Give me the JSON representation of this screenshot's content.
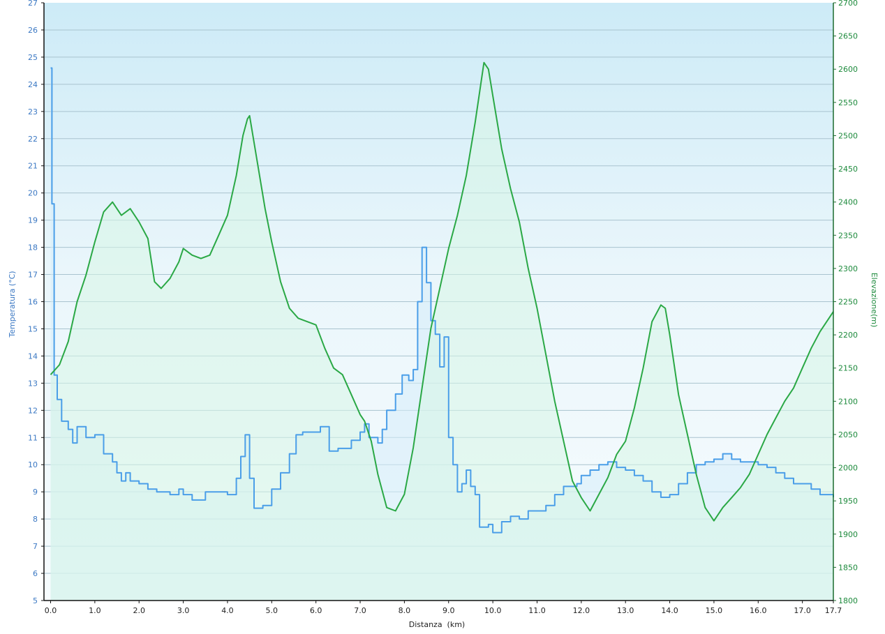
{
  "chart_data": {
    "type": "line",
    "xlabel": "Distanza  (km)",
    "ylabel_left": "Temperatura (°C)",
    "ylabel_right": "Elevazione(m)",
    "xlim": [
      -0.15,
      17.7
    ],
    "ylim_left": [
      5,
      27
    ],
    "ylim_right": [
      1800,
      2700
    ],
    "x_ticks": [
      "0.0",
      "1.0",
      "2.0",
      "3.0",
      "4.0",
      "5.0",
      "6.0",
      "7.0",
      "8.0",
      "9.0",
      "10.0",
      "11.0",
      "12.0",
      "13.0",
      "14.0",
      "15.0",
      "16.0",
      "17.0",
      "17.7"
    ],
    "x_tick_values": [
      0,
      1,
      2,
      3,
      4,
      5,
      6,
      7,
      8,
      9,
      10,
      11,
      12,
      13,
      14,
      15,
      16,
      17,
      17.7
    ],
    "y_left_ticks": [
      "5",
      "6",
      "7",
      "8",
      "9",
      "10",
      "11",
      "12",
      "13",
      "14",
      "15",
      "16",
      "17",
      "18",
      "19",
      "20",
      "21",
      "22",
      "23",
      "24",
      "25",
      "26",
      "27"
    ],
    "y_right_ticks": [
      "1800",
      "1850",
      "1900",
      "1950",
      "2000",
      "2050",
      "2100",
      "2150",
      "2200",
      "2250",
      "2300",
      "2350",
      "2400",
      "2450",
      "2500",
      "2550",
      "2600",
      "2650",
      "2700"
    ],
    "grid": true,
    "series": [
      {
        "name": "Temperatura (°C)",
        "axis": "left",
        "color": "#4a9ee8",
        "fill": "#d6ecfa",
        "step": true,
        "points": [
          [
            0,
            24.6
          ],
          [
            0.03,
            19.6
          ],
          [
            0.08,
            13.3
          ],
          [
            0.15,
            12.4
          ],
          [
            0.25,
            11.6
          ],
          [
            0.4,
            11.3
          ],
          [
            0.5,
            10.8
          ],
          [
            0.6,
            11.4
          ],
          [
            0.8,
            11.0
          ],
          [
            1.0,
            11.1
          ],
          [
            1.2,
            10.4
          ],
          [
            1.4,
            10.1
          ],
          [
            1.5,
            9.7
          ],
          [
            1.6,
            9.4
          ],
          [
            1.7,
            9.7
          ],
          [
            1.8,
            9.4
          ],
          [
            2.0,
            9.3
          ],
          [
            2.2,
            9.1
          ],
          [
            2.4,
            9.0
          ],
          [
            2.7,
            8.9
          ],
          [
            2.9,
            9.1
          ],
          [
            3.0,
            8.9
          ],
          [
            3.2,
            8.7
          ],
          [
            3.5,
            9.0
          ],
          [
            3.8,
            9.0
          ],
          [
            4.0,
            8.9
          ],
          [
            4.2,
            9.5
          ],
          [
            4.3,
            10.3
          ],
          [
            4.4,
            11.1
          ],
          [
            4.5,
            9.5
          ],
          [
            4.6,
            8.4
          ],
          [
            4.8,
            8.5
          ],
          [
            5.0,
            9.1
          ],
          [
            5.2,
            9.7
          ],
          [
            5.4,
            10.4
          ],
          [
            5.55,
            11.1
          ],
          [
            5.7,
            11.2
          ],
          [
            5.9,
            11.2
          ],
          [
            6.1,
            11.4
          ],
          [
            6.3,
            10.5
          ],
          [
            6.5,
            10.6
          ],
          [
            6.8,
            10.9
          ],
          [
            7.0,
            11.2
          ],
          [
            7.1,
            11.5
          ],
          [
            7.2,
            11.0
          ],
          [
            7.4,
            10.8
          ],
          [
            7.5,
            11.3
          ],
          [
            7.6,
            12.0
          ],
          [
            7.8,
            12.6
          ],
          [
            7.95,
            13.3
          ],
          [
            8.1,
            13.1
          ],
          [
            8.2,
            13.5
          ],
          [
            8.3,
            16.0
          ],
          [
            8.4,
            18.0
          ],
          [
            8.5,
            16.7
          ],
          [
            8.6,
            15.3
          ],
          [
            8.7,
            14.8
          ],
          [
            8.8,
            13.6
          ],
          [
            8.9,
            14.7
          ],
          [
            9.0,
            11.0
          ],
          [
            9.1,
            10.0
          ],
          [
            9.2,
            9.0
          ],
          [
            9.3,
            9.3
          ],
          [
            9.4,
            9.8
          ],
          [
            9.5,
            9.2
          ],
          [
            9.6,
            8.9
          ],
          [
            9.7,
            7.7
          ],
          [
            9.9,
            7.8
          ],
          [
            10.0,
            7.5
          ],
          [
            10.2,
            7.9
          ],
          [
            10.4,
            8.1
          ],
          [
            10.6,
            8.0
          ],
          [
            10.8,
            8.3
          ],
          [
            11.0,
            8.3
          ],
          [
            11.2,
            8.5
          ],
          [
            11.4,
            8.9
          ],
          [
            11.6,
            9.2
          ],
          [
            11.9,
            9.3
          ],
          [
            12.0,
            9.6
          ],
          [
            12.2,
            9.8
          ],
          [
            12.4,
            10.0
          ],
          [
            12.6,
            10.1
          ],
          [
            12.8,
            9.9
          ],
          [
            13.0,
            9.8
          ],
          [
            13.2,
            9.6
          ],
          [
            13.4,
            9.4
          ],
          [
            13.6,
            9.0
          ],
          [
            13.8,
            8.8
          ],
          [
            14.0,
            8.9
          ],
          [
            14.2,
            9.3
          ],
          [
            14.4,
            9.7
          ],
          [
            14.6,
            10.0
          ],
          [
            14.8,
            10.1
          ],
          [
            15.0,
            10.2
          ],
          [
            15.2,
            10.4
          ],
          [
            15.4,
            10.2
          ],
          [
            15.6,
            10.1
          ],
          [
            15.8,
            10.1
          ],
          [
            16.0,
            10.0
          ],
          [
            16.2,
            9.9
          ],
          [
            16.4,
            9.7
          ],
          [
            16.6,
            9.5
          ],
          [
            16.8,
            9.3
          ],
          [
            17.0,
            9.3
          ],
          [
            17.2,
            9.1
          ],
          [
            17.4,
            8.9
          ],
          [
            17.7,
            8.8
          ]
        ]
      },
      {
        "name": "Elevazione(m)",
        "axis": "right",
        "color": "#2aa845",
        "fill": "#d7f5e6",
        "step": false,
        "points": [
          [
            0,
            2140
          ],
          [
            0.2,
            2155
          ],
          [
            0.4,
            2190
          ],
          [
            0.6,
            2250
          ],
          [
            0.8,
            2290
          ],
          [
            1.0,
            2340
          ],
          [
            1.2,
            2385
          ],
          [
            1.4,
            2400
          ],
          [
            1.6,
            2380
          ],
          [
            1.8,
            2390
          ],
          [
            2.0,
            2370
          ],
          [
            2.2,
            2345
          ],
          [
            2.35,
            2280
          ],
          [
            2.5,
            2270
          ],
          [
            2.7,
            2285
          ],
          [
            2.9,
            2310
          ],
          [
            3.0,
            2330
          ],
          [
            3.2,
            2320
          ],
          [
            3.4,
            2315
          ],
          [
            3.6,
            2320
          ],
          [
            3.8,
            2350
          ],
          [
            4.0,
            2380
          ],
          [
            4.2,
            2440
          ],
          [
            4.35,
            2500
          ],
          [
            4.45,
            2525
          ],
          [
            4.5,
            2530
          ],
          [
            4.65,
            2470
          ],
          [
            4.85,
            2390
          ],
          [
            5.0,
            2340
          ],
          [
            5.2,
            2280
          ],
          [
            5.4,
            2240
          ],
          [
            5.6,
            2225
          ],
          [
            5.8,
            2220
          ],
          [
            6.0,
            2215
          ],
          [
            6.2,
            2180
          ],
          [
            6.4,
            2150
          ],
          [
            6.6,
            2140
          ],
          [
            6.8,
            2110
          ],
          [
            7.0,
            2080
          ],
          [
            7.1,
            2070
          ],
          [
            7.25,
            2040
          ],
          [
            7.4,
            1990
          ],
          [
            7.6,
            1940
          ],
          [
            7.8,
            1935
          ],
          [
            8.0,
            1960
          ],
          [
            8.2,
            2030
          ],
          [
            8.4,
            2120
          ],
          [
            8.6,
            2210
          ],
          [
            8.8,
            2270
          ],
          [
            9.0,
            2330
          ],
          [
            9.2,
            2380
          ],
          [
            9.4,
            2440
          ],
          [
            9.6,
            2520
          ],
          [
            9.8,
            2610
          ],
          [
            9.9,
            2600
          ],
          [
            10.0,
            2560
          ],
          [
            10.2,
            2480
          ],
          [
            10.4,
            2420
          ],
          [
            10.6,
            2370
          ],
          [
            10.8,
            2300
          ],
          [
            11.0,
            2240
          ],
          [
            11.2,
            2170
          ],
          [
            11.4,
            2100
          ],
          [
            11.6,
            2040
          ],
          [
            11.8,
            1980
          ],
          [
            12.0,
            1955
          ],
          [
            12.2,
            1935
          ],
          [
            12.4,
            1960
          ],
          [
            12.6,
            1985
          ],
          [
            12.8,
            2020
          ],
          [
            13.0,
            2040
          ],
          [
            13.2,
            2090
          ],
          [
            13.4,
            2150
          ],
          [
            13.6,
            2220
          ],
          [
            13.8,
            2245
          ],
          [
            13.9,
            2240
          ],
          [
            14.0,
            2200
          ],
          [
            14.2,
            2110
          ],
          [
            14.4,
            2050
          ],
          [
            14.6,
            1990
          ],
          [
            14.8,
            1940
          ],
          [
            15.0,
            1920
          ],
          [
            15.2,
            1940
          ],
          [
            15.4,
            1955
          ],
          [
            15.6,
            1970
          ],
          [
            15.8,
            1990
          ],
          [
            16.0,
            2020
          ],
          [
            16.2,
            2050
          ],
          [
            16.4,
            2075
          ],
          [
            16.6,
            2100
          ],
          [
            16.8,
            2120
          ],
          [
            17.0,
            2150
          ],
          [
            17.2,
            2180
          ],
          [
            17.4,
            2205
          ],
          [
            17.7,
            2235
          ]
        ]
      }
    ]
  }
}
